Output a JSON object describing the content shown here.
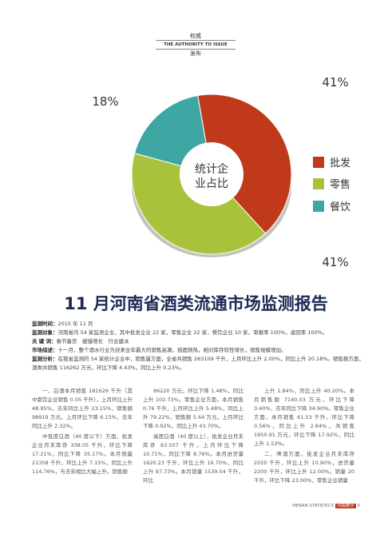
{
  "header": {
    "top": "权威",
    "middle": "THE AUTHORITY TO ISSUE",
    "bottom": "发布"
  },
  "chart_data": {
    "type": "pie",
    "center_label": [
      "统计企",
      "业占比"
    ],
    "categories": [
      "批发",
      "零售",
      "餐饮"
    ],
    "values": [
      41,
      41,
      18
    ],
    "value_labels": [
      "41%",
      "41%",
      "18%"
    ],
    "colors": [
      "#c0391b",
      "#a9c23b",
      "#3fa7a3"
    ]
  },
  "title": "11 月河南省酒类流通市场监测报告",
  "info": [
    {
      "label": "监测时间：",
      "text": "2015 年 11 月"
    },
    {
      "label": "监测对象：",
      "text": "河南省内 54 家监测企业，其中批发企业 22 家，零售企业 22 家，餐饮企业 10 家，审报率 100%，返回率 100%。"
    },
    {
      "label": "关 键 词：",
      "text": "春节备货　缓慢增长　行业建冰"
    },
    {
      "label": "市场综述：",
      "text": "十一月，整个酒水行业为迎来全年最大的销售高潮，摇面频热，相对库存较性增长，销售规模增加。"
    },
    {
      "label": "监测分析：",
      "text": "在我省监测的 54 家统计企业中，销售量方面，全省共销售 263109 千升，上月环比上升 2.00%，同比上升 20.18%。销售额方面，酒类共销售 116262 万元，环比下降 4.43%，同比上升 0.23%。"
    }
  ],
  "columns": [
    [
      "一、白酒本月销售 181626 千升（其中都饮企业销售 0.05 千升），上月环比上升 48.95%，去年同比上升 23.15%，销售额 98919 万元，上月环比下降 6.15%，去年同比上升 2.32%。",
      "中低度白酒（40 度以下）方面，批发企业月末库存 338.05 千升，环比下降 17.21%，同比下降 35.17%。本月销量 21358 千升，环比上升 7.15%，同比上升 114.76%，与去年相比大幅上升。销售额"
    ],
    [
      "86220 万元，环比下降 1.48%，同比上升 102.73%。零售企业方面，本月销售 0.76 千升，上月环比上升 5.48%，同比上升 79.22%，销售额 5.64 万元，上月环比下降 0.92%，同比上升 43.70%。",
      "高度白酒（40 度以上），批发企业月末库存 63.507 千升，上月环比下降 10.71%，同比下降 8.76%。本月进货量 1620.23 千升，环比上升 16.70%，同比上升 97.73%。本月销量 1539.54 千升，环比"
    ],
    [
      "上升 1.84%，同比上升 40.20%。本月销售额 7140.03 万元，环比下降 3.40%，去年同比下降 34.90%。零售企业方面，本月销售 61.53 千升，环比下降 0.56%，同比上升 2.84%，共销售 1950.91 万元，环比下降 17.92%，同比上升 1.53%。",
      "二、啤酒方面，批发企业月末库存 2020 千升，环比上升 10.90%，进货量 2200 千升，环比上升 12.00%。销量 20 千升，环比下降 23.00%，零售企业销量"
    ]
  ],
  "footer": {
    "brand": "HENAN STATISTICS",
    "name": "河南统计",
    "page": "5"
  }
}
